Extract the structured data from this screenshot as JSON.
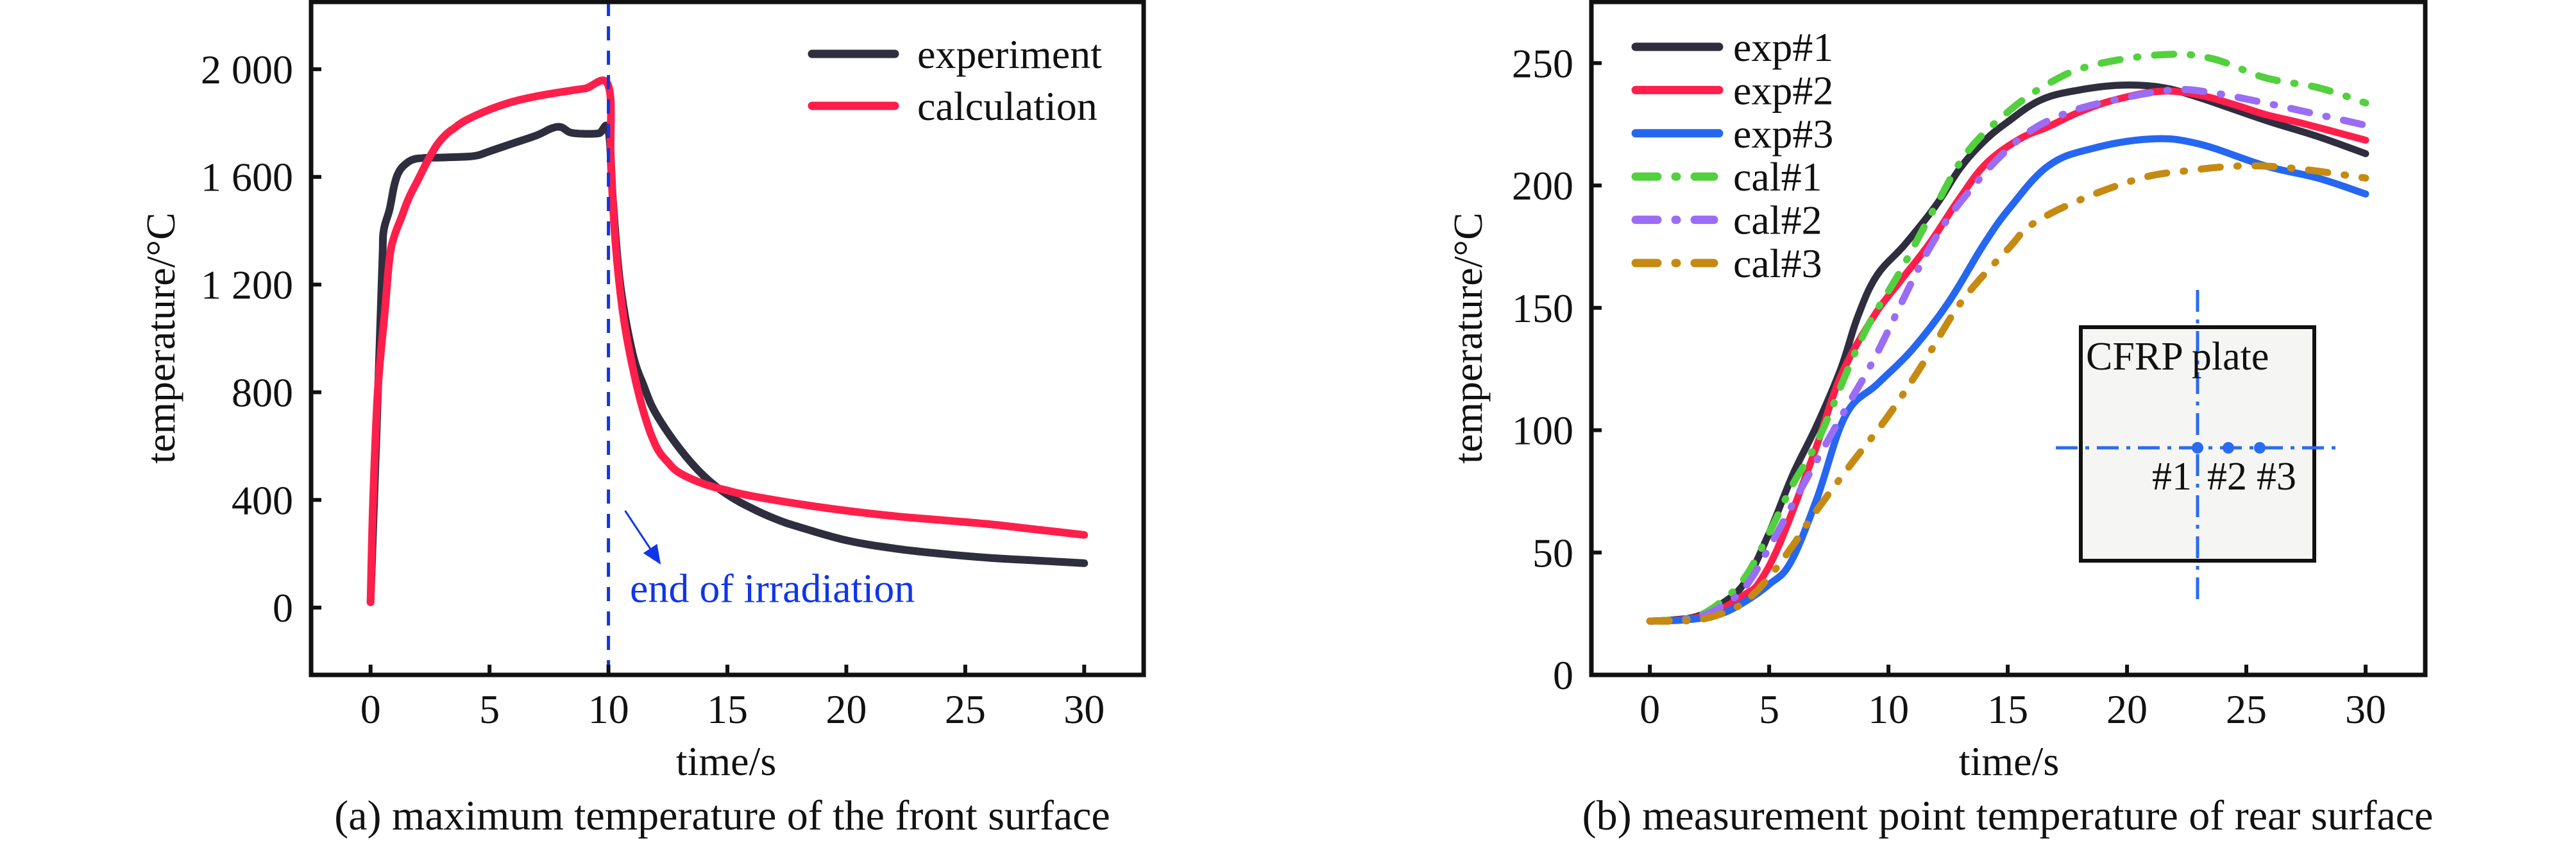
{
  "figure": {
    "panels": [
      {
        "id": "a",
        "caption": "(a) maximum temperature of the front surface"
      },
      {
        "id": "b",
        "caption": "(b) measurement point temperature of rear surface"
      }
    ]
  },
  "chart_data": [
    {
      "type": "line",
      "title": "",
      "caption": "(a) maximum temperature of the front surface",
      "xlabel": "time/s",
      "ylabel": "temperature/°C",
      "xlim": [
        -2.5,
        32.5
      ],
      "ylim": [
        -250,
        2250
      ],
      "xticks": [
        0,
        5,
        10,
        15,
        20,
        25,
        30
      ],
      "xtick_labels": [
        "0",
        "5",
        "10",
        "15",
        "20",
        "25",
        "30"
      ],
      "yticks": [
        0,
        400,
        800,
        1200,
        1600,
        2000
      ],
      "ytick_labels": [
        "0",
        "400",
        "800",
        "1 200",
        "1 600",
        "2 000"
      ],
      "grid": false,
      "legend_position": "top-right",
      "series": [
        {
          "name": "experiment",
          "color": "#2f2e3f",
          "style": "solid",
          "x": [
            0,
            0.15,
            0.35,
            0.5,
            0.55,
            0.8,
            1.0,
            1.2,
            1.5,
            1.8,
            2.2,
            3.0,
            4.0,
            4.5,
            5.0,
            6.0,
            7.0,
            7.6,
            8.0,
            8.4,
            9.0,
            9.6,
            10.0,
            10.2,
            10.5,
            11.0,
            11.5,
            12.0,
            13.0,
            14.0,
            15.0,
            16.0,
            17.0,
            18.0,
            20.0,
            22.0,
            24.0,
            26.0,
            28.0,
            30.0
          ],
          "y": [
            20,
            400,
            900,
            1300,
            1400,
            1480,
            1570,
            1620,
            1650,
            1665,
            1670,
            1672,
            1675,
            1680,
            1695,
            1725,
            1755,
            1780,
            1785,
            1765,
            1760,
            1762,
            1772,
            1500,
            1200,
            950,
            820,
            720,
            590,
            490,
            420,
            370,
            330,
            300,
            250,
            220,
            200,
            185,
            175,
            165
          ]
        },
        {
          "name": "calculation",
          "color": "#ff1f4b",
          "style": "solid",
          "x": [
            0,
            0.1,
            0.3,
            0.6,
            0.8,
            1.0,
            1.3,
            1.6,
            2.0,
            2.4,
            2.8,
            3.2,
            3.5,
            4.0,
            5.0,
            6.0,
            7.0,
            8.0,
            9.0,
            10.0,
            10.1,
            10.3,
            10.6,
            11.0,
            11.5,
            12.0,
            12.5,
            13.0,
            14.0,
            15.0,
            16.0,
            18.0,
            20.0,
            22.0,
            24.0,
            26.0,
            28.0,
            30.0
          ],
          "y": [
            20,
            380,
            800,
            1100,
            1300,
            1380,
            1450,
            1520,
            1590,
            1660,
            1720,
            1760,
            1780,
            1810,
            1850,
            1880,
            1900,
            1915,
            1928,
            1938,
            1650,
            1350,
            1100,
            900,
            720,
            600,
            540,
            500,
            460,
            435,
            415,
            385,
            360,
            340,
            325,
            310,
            290,
            270
          ]
        }
      ],
      "annotations": [
        {
          "type": "vline",
          "x": 10,
          "style": "dashed",
          "color": "#1036e8"
        },
        {
          "type": "arrow",
          "text": "end of irradiation",
          "color": "#1036e8",
          "from": [
            10.7,
            360
          ],
          "to": [
            12.2,
            160
          ],
          "text_at": [
            10.9,
            20
          ]
        }
      ]
    },
    {
      "type": "line",
      "title": "",
      "caption": "(b) measurement point temperature of rear surface",
      "xlabel": "time/s",
      "ylabel": "temperature/°C",
      "xlim": [
        -2.45,
        32.5
      ],
      "ylim": [
        0,
        275
      ],
      "xticks": [
        0,
        5,
        10,
        15,
        20,
        25,
        30
      ],
      "xtick_labels": [
        "0",
        "5",
        "10",
        "15",
        "20",
        "25",
        "30"
      ],
      "yticks": [
        0,
        50,
        100,
        150,
        200,
        250
      ],
      "ytick_labels": [
        "0",
        "50",
        "100",
        "150",
        "200",
        "250"
      ],
      "grid": false,
      "legend_position": "top-left",
      "series": [
        {
          "name": "exp#1",
          "color": "#2f2e3f",
          "style": "solid",
          "x": [
            0,
            1,
            2,
            3,
            4,
            5,
            6,
            7,
            8,
            8.7,
            9.5,
            10.7,
            12,
            13,
            14,
            15,
            16.4,
            18,
            19.8,
            21.5,
            23,
            24.5,
            26,
            28,
            30
          ],
          "y": [
            22,
            22.5,
            24,
            29,
            38,
            58,
            82,
            102,
            125,
            146,
            163,
            176,
            192,
            207,
            218,
            226,
            235,
            239,
            241,
            240,
            236,
            231,
            226,
            220,
            213
          ]
        },
        {
          "name": "exp#2",
          "color": "#ff1f4b",
          "style": "solid",
          "x": [
            0,
            1,
            2,
            3,
            4,
            4.6,
            5.5,
            6.9,
            8,
            9.35,
            10.5,
            11.7,
            13,
            14.1,
            15.5,
            16.7,
            18,
            19.5,
            21.4,
            23,
            24.5,
            25.8,
            27.5,
            30
          ],
          "y": [
            22,
            22.3,
            23.5,
            27,
            33,
            38,
            55,
            91,
            122,
            146,
            161,
            176,
            195,
            209,
            219,
            224,
            230,
            235,
            238.5,
            237,
            233,
            229,
            225,
            218.5
          ]
        },
        {
          "name": "exp#3",
          "color": "#2567f0",
          "style": "solid",
          "x": [
            0,
            1,
            2,
            3,
            4,
            5,
            5.9,
            7,
            8.2,
            9.55,
            11,
            12.5,
            14,
            15.1,
            16.7,
            18.5,
            21,
            23,
            25.8,
            28,
            30
          ],
          "y": [
            22,
            22.2,
            23,
            25,
            30,
            37,
            46,
            72,
            106,
            119,
            133,
            152,
            176,
            191,
            208,
            215,
            219,
            217,
            208,
            203,
            196.5
          ]
        },
        {
          "name": "cal#1",
          "color": "#52d03e",
          "style": "dashdot",
          "x": [
            0,
            1,
            2,
            3,
            4,
            5,
            6,
            7.1,
            8.9,
            10.5,
            12,
            13.3,
            15,
            16.7,
            18.5,
            21.4,
            23.5,
            25.8,
            28,
            30
          ],
          "y": [
            22,
            22.5,
            24,
            30,
            40,
            58,
            78,
            97,
            138,
            165,
            192,
            213.6,
            230,
            241.6,
            249,
            253.4,
            252,
            244,
            240,
            233.7
          ]
        },
        {
          "name": "cal#2",
          "color": "#9b6cf6",
          "style": "dashdot",
          "x": [
            0,
            1,
            2,
            3,
            4,
            5,
            6,
            7.3,
            8.4,
            9.5,
            11.7,
            13.5,
            15.5,
            17.3,
            19.5,
            21.9,
            23.5,
            25.8,
            28,
            30
          ],
          "y": [
            22,
            22.3,
            23.5,
            28,
            36,
            52,
            70,
            93,
            112,
            131,
            174,
            199,
            219,
            229,
            235,
            239,
            238,
            233.7,
            229,
            224.6
          ]
        },
        {
          "name": "cal#3",
          "color": "#c68a12",
          "style": "dashdot",
          "x": [
            0,
            1,
            2,
            3,
            4,
            5,
            6,
            6.9,
            8.5,
            10,
            11.5,
            13.1,
            15.1,
            16,
            18,
            20.6,
            22.5,
            24.8,
            27,
            29.6,
            30
          ],
          "y": [
            22,
            22,
            22.5,
            25,
            30,
            40,
            53,
            66,
            87,
            106,
            128,
            153,
            175,
            184,
            194,
            203,
            206,
            208,
            207,
            203.6,
            203
          ]
        }
      ],
      "inset": {
        "label": "CFRP plate",
        "points": [
          "#1",
          "#2",
          "#3"
        ],
        "fill": "#f5f5f3",
        "line_color": "#2a6cf0"
      }
    }
  ]
}
